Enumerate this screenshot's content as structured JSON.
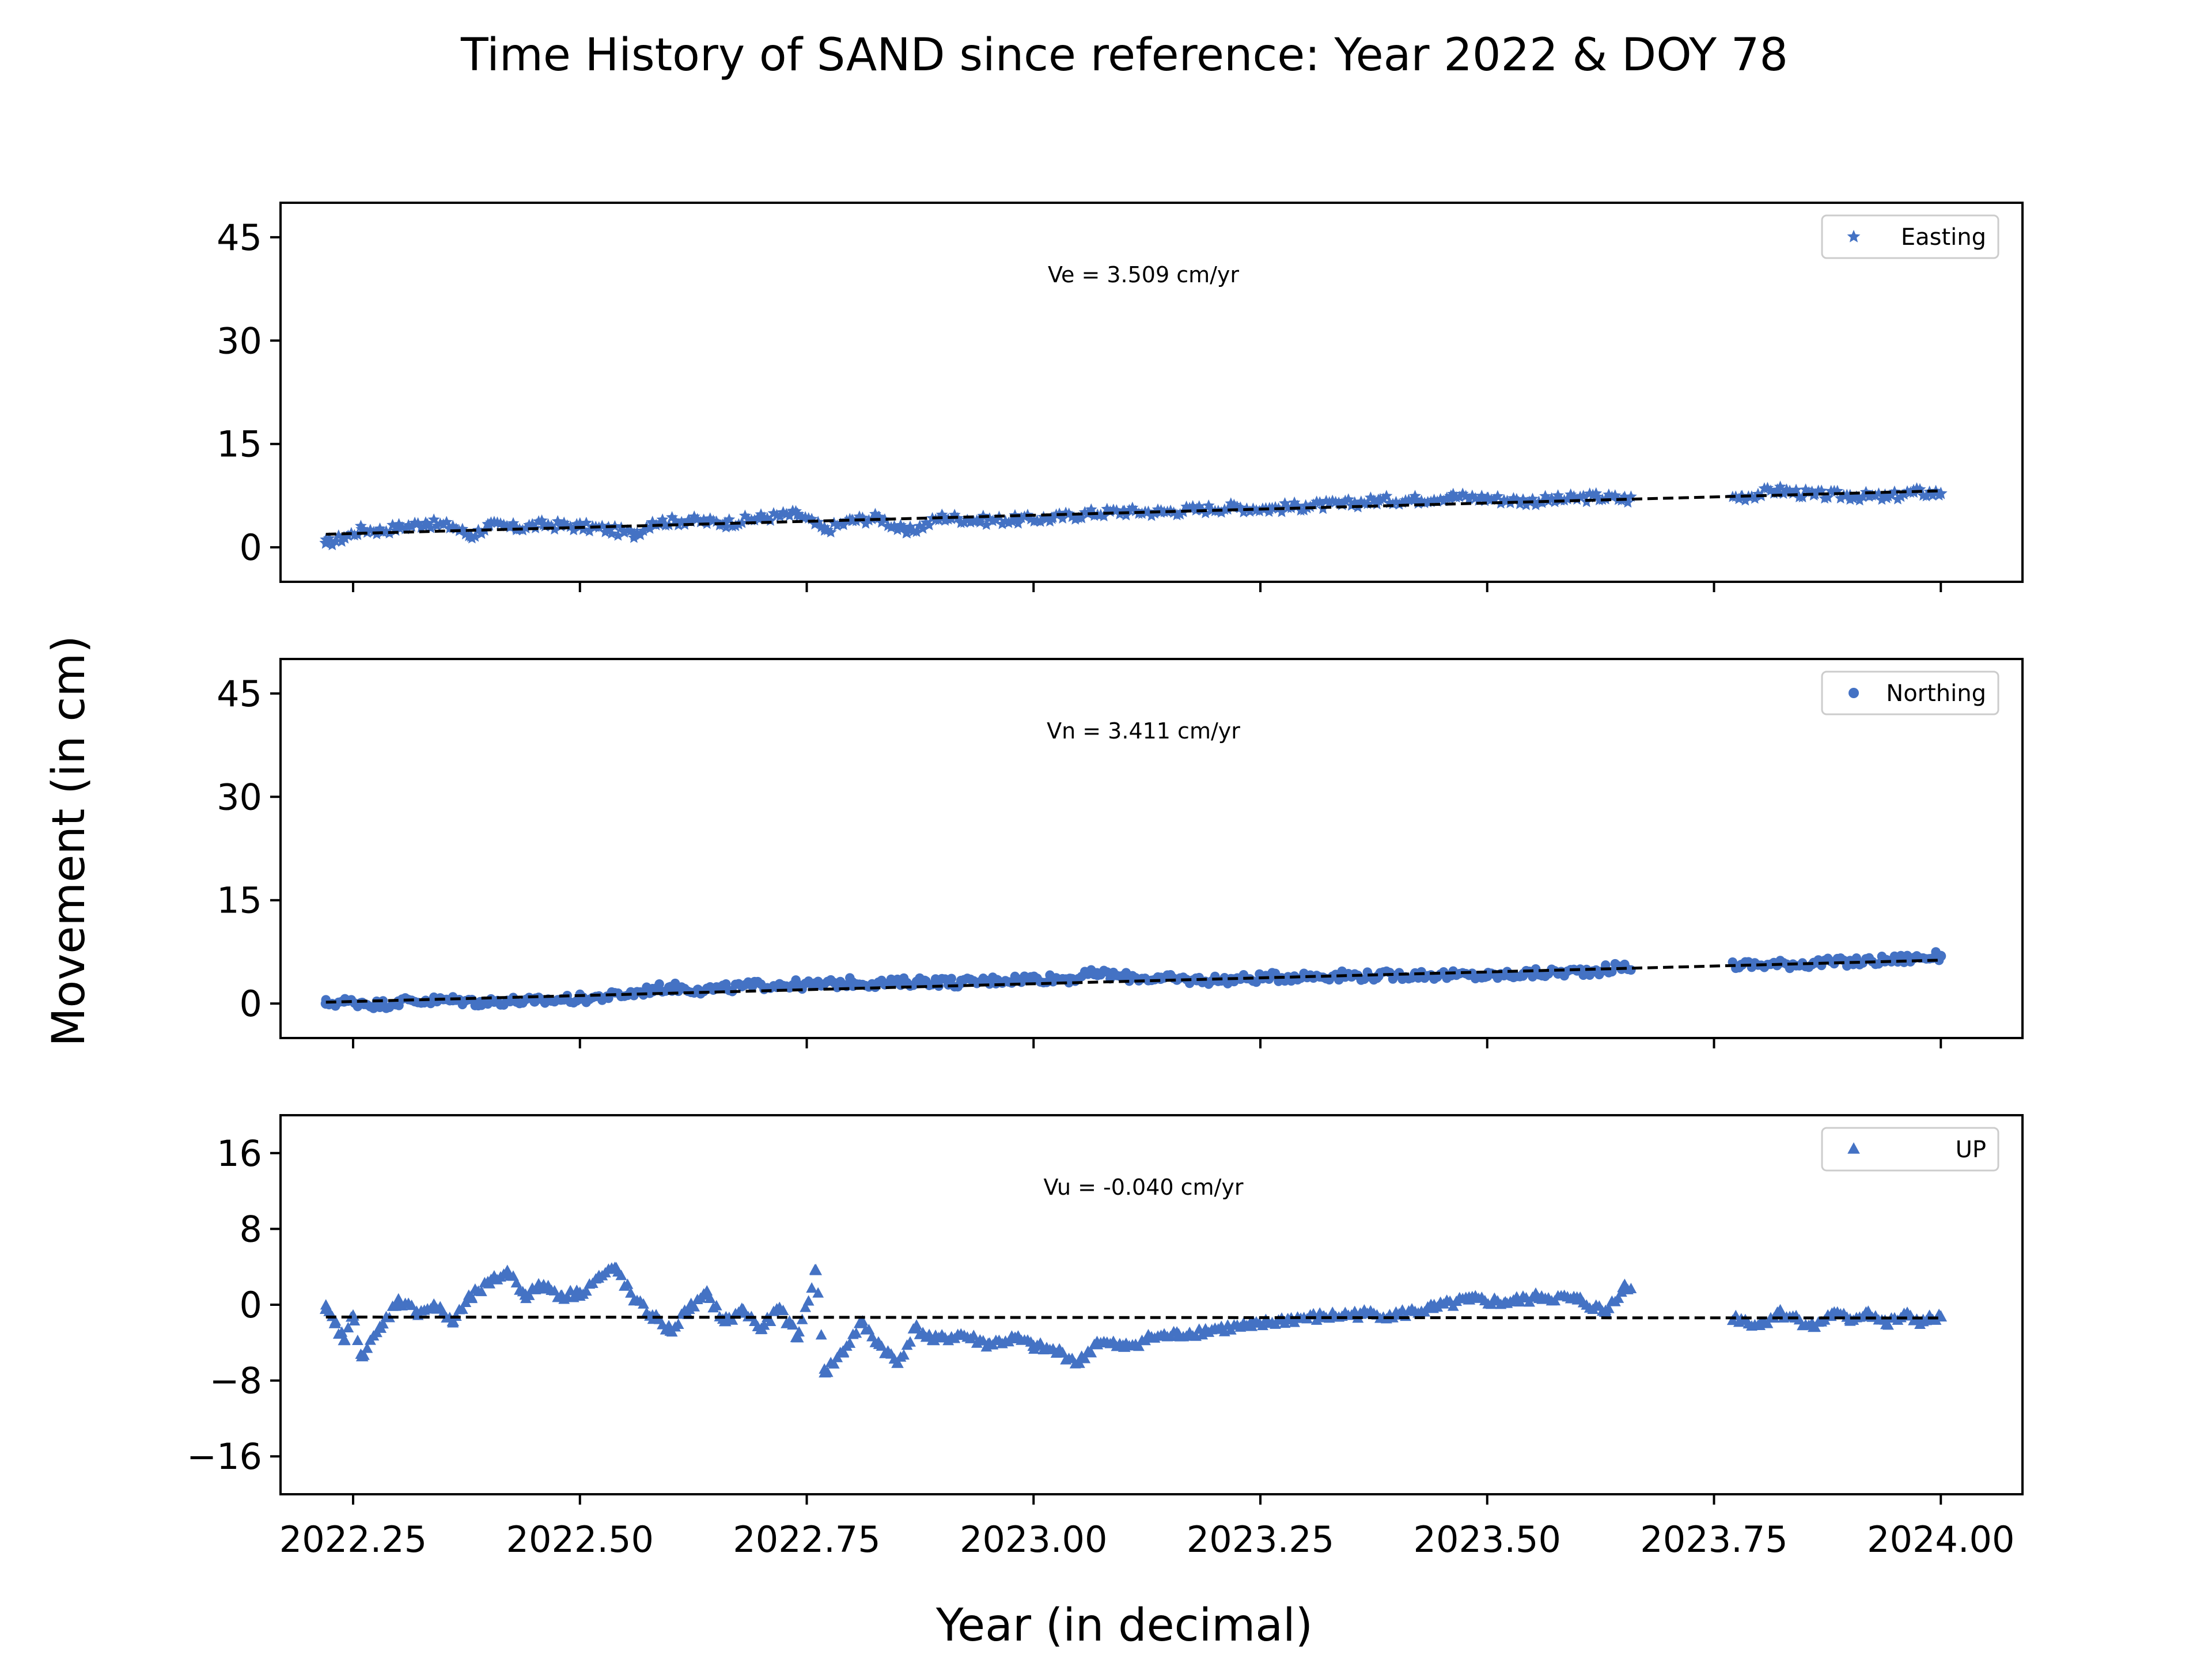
{
  "chart_data": {
    "type": "scatter",
    "title": "Time History of SAND since reference: Year 2022 & DOY 78",
    "xlabel": "Year (in decimal)",
    "ylabel": "Movement (in cm)",
    "xlim": [
      2022.17,
      2024.09
    ],
    "xticks": [
      2022.25,
      2022.5,
      2022.75,
      2023.0,
      2023.25,
      2023.5,
      2023.75,
      2024.0
    ],
    "xtick_labels": [
      "2022.25",
      "2022.50",
      "2022.75",
      "2023.00",
      "2023.25",
      "2023.50",
      "2023.75",
      "2024.00"
    ],
    "color": "#4472c4",
    "trend_color": "#000000",
    "data_gap": [
      2023.66,
      2023.77
    ],
    "panels": [
      {
        "name": "Easting",
        "marker": "star",
        "annotation": "Ve =  3.509 cm/yr",
        "rate_cm_per_yr": 3.509,
        "ylim": [
          -5,
          50
        ],
        "yticks": [
          0,
          15,
          30,
          45
        ],
        "ytick_labels": [
          "0",
          "15",
          "30",
          "45"
        ],
        "trend": [
          [
            2022.22,
            1.9
          ],
          [
            2024.0,
            8.2
          ]
        ],
        "points": [
          [
            2022.22,
            0.6
          ],
          [
            2022.24,
            1.4
          ],
          [
            2022.26,
            2.6
          ],
          [
            2022.28,
            2.4
          ],
          [
            2022.3,
            2.9
          ],
          [
            2022.33,
            3.5
          ],
          [
            2022.36,
            3.0
          ],
          [
            2022.38,
            1.6
          ],
          [
            2022.4,
            3.2
          ],
          [
            2022.43,
            2.8
          ],
          [
            2022.46,
            3.3
          ],
          [
            2022.5,
            3.0
          ],
          [
            2022.53,
            2.6
          ],
          [
            2022.56,
            1.9
          ],
          [
            2022.58,
            3.6
          ],
          [
            2022.62,
            3.9
          ],
          [
            2022.66,
            3.5
          ],
          [
            2022.7,
            4.3
          ],
          [
            2022.74,
            4.8
          ],
          [
            2022.77,
            2.5
          ],
          [
            2022.8,
            3.9
          ],
          [
            2022.83,
            4.3
          ],
          [
            2022.86,
            2.1
          ],
          [
            2022.9,
            4.4
          ],
          [
            2022.94,
            3.9
          ],
          [
            2022.98,
            4.0
          ],
          [
            2023.02,
            4.2
          ],
          [
            2023.06,
            4.9
          ],
          [
            2023.1,
            5.2
          ],
          [
            2023.14,
            5.1
          ],
          [
            2023.18,
            5.5
          ],
          [
            2023.22,
            5.8
          ],
          [
            2023.26,
            5.6
          ],
          [
            2023.3,
            6.0
          ],
          [
            2023.34,
            6.2
          ],
          [
            2023.38,
            6.8
          ],
          [
            2023.42,
            6.9
          ],
          [
            2023.46,
            7.4
          ],
          [
            2023.5,
            7.1
          ],
          [
            2023.54,
            6.7
          ],
          [
            2023.58,
            6.9
          ],
          [
            2023.62,
            7.3
          ],
          [
            2023.65,
            7.0
          ],
          [
            2023.78,
            7.3
          ],
          [
            2023.82,
            8.3
          ],
          [
            2023.86,
            7.6
          ],
          [
            2023.9,
            7.5
          ],
          [
            2023.94,
            7.2
          ],
          [
            2023.97,
            8.0
          ],
          [
            2024.0,
            7.8
          ]
        ]
      },
      {
        "name": "Northing",
        "marker": "circle",
        "annotation": "Vn =  3.411 cm/yr",
        "rate_cm_per_yr": 3.411,
        "ylim": [
          -5,
          50
        ],
        "yticks": [
          0,
          15,
          30,
          45
        ],
        "ytick_labels": [
          "0",
          "15",
          "30",
          "45"
        ],
        "trend": [
          [
            2022.22,
            0.2
          ],
          [
            2024.0,
            6.3
          ]
        ],
        "points": [
          [
            2022.22,
            0.0
          ],
          [
            2022.24,
            0.3
          ],
          [
            2022.26,
            0.1
          ],
          [
            2022.28,
            -0.2
          ],
          [
            2022.3,
            0.3
          ],
          [
            2022.33,
            0.4
          ],
          [
            2022.36,
            0.5
          ],
          [
            2022.39,
            0.2
          ],
          [
            2022.42,
            0.4
          ],
          [
            2022.45,
            0.3
          ],
          [
            2022.48,
            0.6
          ],
          [
            2022.5,
            0.7
          ],
          [
            2022.53,
            1.0
          ],
          [
            2022.56,
            1.5
          ],
          [
            2022.58,
            2.1
          ],
          [
            2022.6,
            2.4
          ],
          [
            2022.63,
            2.0
          ],
          [
            2022.66,
            2.2
          ],
          [
            2022.69,
            2.6
          ],
          [
            2022.72,
            2.8
          ],
          [
            2022.76,
            2.7
          ],
          [
            2022.8,
            3.1
          ],
          [
            2022.84,
            2.9
          ],
          [
            2022.88,
            3.3
          ],
          [
            2022.92,
            3.0
          ],
          [
            2022.96,
            3.4
          ],
          [
            2023.0,
            3.7
          ],
          [
            2023.04,
            3.6
          ],
          [
            2023.07,
            4.4
          ],
          [
            2023.1,
            3.9
          ],
          [
            2023.14,
            3.6
          ],
          [
            2023.18,
            3.4
          ],
          [
            2023.22,
            3.5
          ],
          [
            2023.26,
            3.8
          ],
          [
            2023.3,
            4.0
          ],
          [
            2023.34,
            4.1
          ],
          [
            2023.38,
            4.0
          ],
          [
            2023.42,
            4.2
          ],
          [
            2023.46,
            4.1
          ],
          [
            2023.5,
            4.0
          ],
          [
            2023.54,
            4.3
          ],
          [
            2023.58,
            4.5
          ],
          [
            2023.62,
            4.8
          ],
          [
            2023.65,
            5.3
          ],
          [
            2023.78,
            5.6
          ],
          [
            2023.82,
            5.7
          ],
          [
            2023.86,
            5.9
          ],
          [
            2023.9,
            6.0
          ],
          [
            2023.94,
            6.3
          ],
          [
            2023.97,
            6.6
          ],
          [
            2024.0,
            6.9
          ]
        ]
      },
      {
        "name": "UP",
        "marker": "triangle",
        "annotation": "Vu = -0.040 cm/yr",
        "rate_cm_per_yr": -0.04,
        "ylim": [
          -20,
          20
        ],
        "yticks": [
          -16,
          -8,
          0,
          8,
          16
        ],
        "ytick_labels": [
          "−16",
          "−8",
          "0",
          "8",
          "16"
        ],
        "trend": [
          [
            2022.22,
            -1.3
          ],
          [
            2024.0,
            -1.4
          ]
        ],
        "points": [
          [
            2022.22,
            -0.5
          ],
          [
            2022.23,
            -2.0
          ],
          [
            2022.24,
            -3.8
          ],
          [
            2022.25,
            -1.2
          ],
          [
            2022.26,
            -5.5
          ],
          [
            2022.28,
            -2.5
          ],
          [
            2022.3,
            0.5
          ],
          [
            2022.32,
            -0.8
          ],
          [
            2022.34,
            -0.2
          ],
          [
            2022.36,
            -1.8
          ],
          [
            2022.38,
            0.8
          ],
          [
            2022.4,
            2.2
          ],
          [
            2022.42,
            3.5
          ],
          [
            2022.44,
            1.0
          ],
          [
            2022.46,
            2.0
          ],
          [
            2022.48,
            0.9
          ],
          [
            2022.5,
            1.2
          ],
          [
            2022.52,
            2.8
          ],
          [
            2022.54,
            3.8
          ],
          [
            2022.56,
            0.4
          ],
          [
            2022.58,
            -1.2
          ],
          [
            2022.6,
            -2.8
          ],
          [
            2022.62,
            -0.5
          ],
          [
            2022.64,
            1.0
          ],
          [
            2022.66,
            -1.8
          ],
          [
            2022.68,
            -0.6
          ],
          [
            2022.7,
            -2.6
          ],
          [
            2022.72,
            -0.4
          ],
          [
            2022.74,
            -3.5
          ],
          [
            2022.76,
            3.6
          ],
          [
            2022.77,
            -7.2
          ],
          [
            2022.79,
            -5.0
          ],
          [
            2022.81,
            -2.0
          ],
          [
            2022.83,
            -4.2
          ],
          [
            2022.85,
            -6.2
          ],
          [
            2022.87,
            -2.5
          ],
          [
            2022.89,
            -3.8
          ],
          [
            2022.92,
            -3.2
          ],
          [
            2022.95,
            -4.2
          ],
          [
            2022.98,
            -3.6
          ],
          [
            2023.0,
            -4.4
          ],
          [
            2023.03,
            -5.1
          ],
          [
            2023.05,
            -6.2
          ],
          [
            2023.07,
            -4.0
          ],
          [
            2023.1,
            -4.5
          ],
          [
            2023.13,
            -3.5
          ],
          [
            2023.16,
            -3.2
          ],
          [
            2023.2,
            -2.6
          ],
          [
            2023.24,
            -2.3
          ],
          [
            2023.28,
            -1.6
          ],
          [
            2023.32,
            -1.3
          ],
          [
            2023.36,
            -1.0
          ],
          [
            2023.4,
            -1.1
          ],
          [
            2023.44,
            -0.4
          ],
          [
            2023.48,
            0.5
          ],
          [
            2023.52,
            0.2
          ],
          [
            2023.56,
            0.8
          ],
          [
            2023.6,
            0.5
          ],
          [
            2023.63,
            -0.8
          ],
          [
            2023.65,
            1.8
          ],
          [
            2023.78,
            -1.6
          ],
          [
            2023.8,
            -2.2
          ],
          [
            2023.82,
            -0.9
          ],
          [
            2023.84,
            -1.4
          ],
          [
            2023.86,
            -2.4
          ],
          [
            2023.88,
            -1.0
          ],
          [
            2023.9,
            -1.6
          ],
          [
            2023.92,
            -0.8
          ],
          [
            2023.94,
            -2.1
          ],
          [
            2023.96,
            -1.2
          ],
          [
            2023.98,
            -1.8
          ],
          [
            2024.0,
            -1.3
          ]
        ]
      }
    ]
  }
}
